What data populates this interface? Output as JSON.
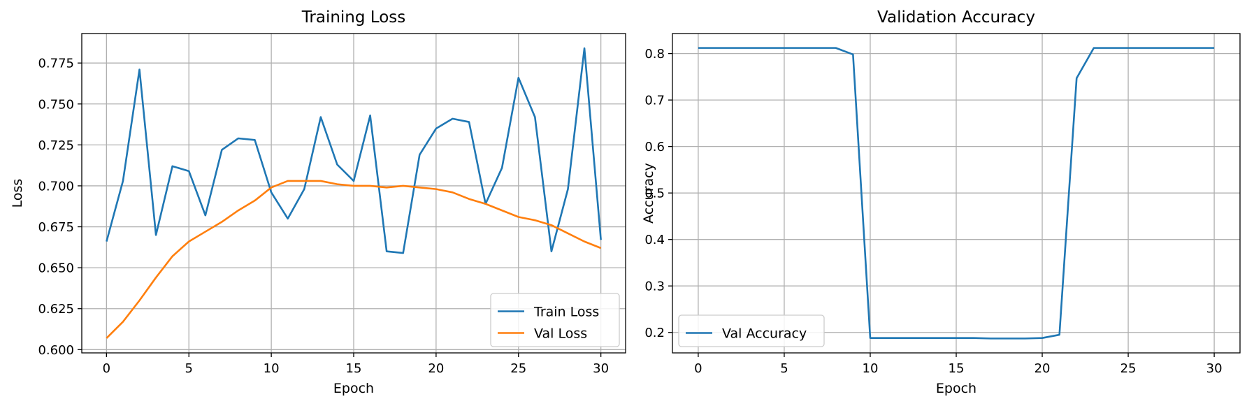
{
  "chart_data": [
    {
      "type": "line",
      "title": "Training Loss",
      "xlabel": "Epoch",
      "ylabel": "Loss",
      "xlim": [
        -1.5,
        31.5
      ],
      "ylim": [
        0.598,
        0.793
      ],
      "xticks": [
        0,
        5,
        10,
        15,
        20,
        25,
        30
      ],
      "yticks": [
        0.6,
        0.625,
        0.65,
        0.675,
        0.7,
        0.725,
        0.75,
        0.775
      ],
      "ytick_decimals": 3,
      "grid": true,
      "legend_position": "lower-right",
      "x": [
        0,
        1,
        2,
        3,
        4,
        5,
        6,
        7,
        8,
        9,
        10,
        11,
        12,
        13,
        14,
        15,
        16,
        17,
        18,
        19,
        20,
        21,
        22,
        23,
        24,
        25,
        26,
        27,
        28,
        29,
        30
      ],
      "series": [
        {
          "name": "Train Loss",
          "color": "#1f77b4",
          "values": [
            0.666,
            0.703,
            0.771,
            0.67,
            0.712,
            0.709,
            0.682,
            0.722,
            0.729,
            0.728,
            0.696,
            0.68,
            0.698,
            0.742,
            0.713,
            0.703,
            0.743,
            0.66,
            0.659,
            0.719,
            0.735,
            0.741,
            0.739,
            0.689,
            0.711,
            0.766,
            0.742,
            0.66,
            0.698,
            0.784,
            0.667
          ]
        },
        {
          "name": "Val Loss",
          "color": "#ff7f0e",
          "values": [
            0.607,
            0.617,
            0.63,
            0.644,
            0.657,
            0.666,
            0.672,
            0.678,
            0.685,
            0.691,
            0.699,
            0.703,
            0.703,
            0.703,
            0.701,
            0.7,
            0.7,
            0.699,
            0.7,
            0.699,
            0.698,
            0.696,
            0.692,
            0.689,
            0.685,
            0.681,
            0.679,
            0.676,
            0.671,
            0.666,
            0.662
          ]
        }
      ]
    },
    {
      "type": "line",
      "title": "Validation Accuracy",
      "xlabel": "Epoch",
      "ylabel": "Accuracy",
      "xlim": [
        -1.5,
        31.5
      ],
      "ylim": [
        0.156,
        0.843
      ],
      "xticks": [
        0,
        5,
        10,
        15,
        20,
        25,
        30
      ],
      "yticks": [
        0.2,
        0.3,
        0.4,
        0.5,
        0.6,
        0.7,
        0.8
      ],
      "ytick_decimals": 1,
      "grid": true,
      "legend_position": "lower-left",
      "x": [
        0,
        1,
        2,
        3,
        4,
        5,
        6,
        7,
        8,
        9,
        10,
        11,
        12,
        13,
        14,
        15,
        16,
        17,
        18,
        19,
        20,
        21,
        22,
        23,
        24,
        25,
        26,
        27,
        28,
        29,
        30
      ],
      "series": [
        {
          "name": "Val Accuracy",
          "color": "#1f77b4",
          "values": [
            0.812,
            0.812,
            0.812,
            0.812,
            0.812,
            0.812,
            0.812,
            0.812,
            0.812,
            0.798,
            0.188,
            0.188,
            0.188,
            0.188,
            0.188,
            0.188,
            0.188,
            0.187,
            0.187,
            0.187,
            0.188,
            0.195,
            0.747,
            0.812,
            0.812,
            0.812,
            0.812,
            0.812,
            0.812,
            0.812,
            0.812
          ]
        }
      ]
    }
  ]
}
